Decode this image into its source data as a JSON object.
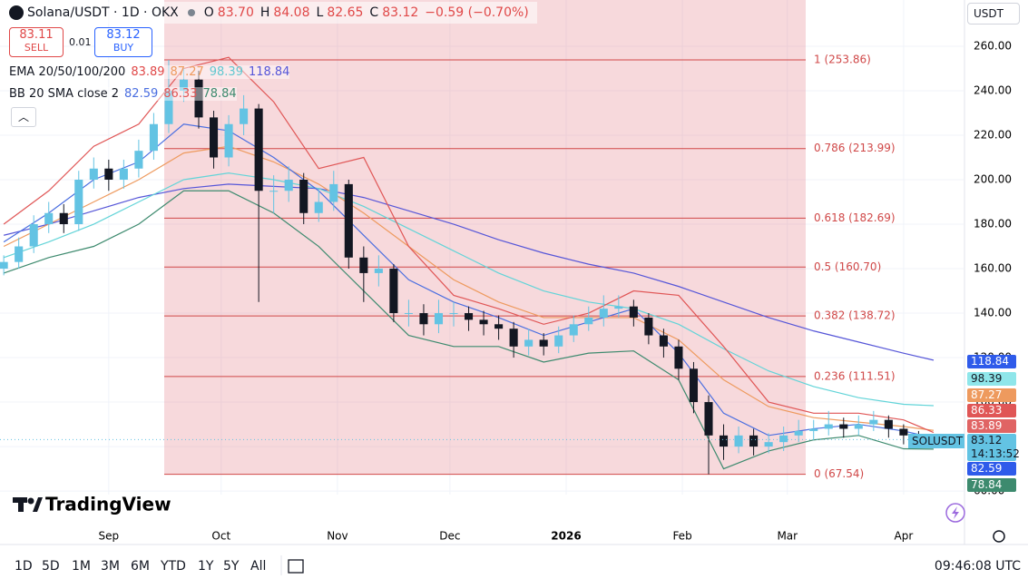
{
  "header": {
    "symbol": "Solana/USDT · 1D · OKX",
    "ohlc": [
      [
        "O",
        "83.70"
      ],
      [
        "H",
        "84.08"
      ],
      [
        "L",
        "82.65"
      ],
      [
        "C",
        "83.12"
      ]
    ],
    "change": "−0.59 (−0.70%)",
    "sell_price": "83.11",
    "sell": "SELL",
    "spread": "0.01",
    "buy_price": "83.12",
    "buy": "BUY",
    "ema": {
      "label": "EMA 20/50/100/200",
      "values": [
        "83.89",
        "87.27",
        "98.39",
        "118.84"
      ]
    },
    "bb": {
      "label": "BB 20 SMA close 2",
      "values": [
        "82.59",
        "86.33",
        "78.84"
      ]
    },
    "currency": "USDT",
    "ticker": "SOLUSDT",
    "countdown": "14:13:52",
    "brand": "TradingView",
    "timeframes": [
      "1D",
      "5D",
      "1M",
      "3M",
      "6M",
      "YTD",
      "1Y",
      "5Y",
      "All"
    ],
    "clock": "09:46:08 UTC"
  },
  "chart_data": {
    "type": "candlestick",
    "grid": true,
    "up_color": "#63c3e3",
    "down_color": "#131722",
    "xlim": [
      -29,
      228
    ],
    "ylim": [
      58.4,
      280.8
    ],
    "xticks": [
      {
        "value": 0,
        "label": "Sep"
      },
      {
        "value": 30,
        "label": "Oct"
      },
      {
        "value": 61,
        "label": "Nov"
      },
      {
        "value": 91,
        "label": "Dec"
      },
      {
        "value": 122,
        "label": "2026"
      },
      {
        "value": 153,
        "label": "Feb"
      },
      {
        "value": 181,
        "label": "Mar"
      },
      {
        "value": 212,
        "label": "Apr"
      }
    ],
    "yticks": [
      {
        "value": 60,
        "label": "60.00"
      },
      {
        "value": 80,
        "label": "80.00"
      },
      {
        "value": 100,
        "label": "100.00"
      },
      {
        "value": 120,
        "label": "120.00"
      },
      {
        "value": 140,
        "label": "140.00"
      },
      {
        "value": 160,
        "label": "160.00"
      },
      {
        "value": 180,
        "label": "180.00"
      },
      {
        "value": 200,
        "label": "200.00"
      },
      {
        "value": 220,
        "label": "220.00"
      },
      {
        "value": 240,
        "label": "240.00"
      },
      {
        "value": 260,
        "label": "260.00"
      }
    ],
    "x": [
      -28,
      -24,
      -20,
      -16,
      -12,
      -8,
      -4,
      0,
      4,
      8,
      12,
      16,
      20,
      24,
      28,
      32,
      36,
      40,
      44,
      48,
      52,
      56,
      60,
      64,
      68,
      72,
      76,
      80,
      84,
      88,
      92,
      96,
      100,
      104,
      108,
      112,
      116,
      120,
      124,
      128,
      132,
      136,
      140,
      144,
      148,
      152,
      156,
      160,
      164,
      168,
      172,
      176,
      180,
      184,
      188,
      192,
      196,
      200,
      204,
      208,
      212,
      216,
      220
    ],
    "open": [
      160,
      163,
      170,
      180,
      185,
      180,
      200,
      205,
      200,
      205,
      213,
      225,
      240,
      245,
      228,
      210,
      225,
      232,
      195,
      195,
      200,
      185,
      190,
      198,
      165,
      158,
      160,
      140,
      140,
      135,
      140,
      140,
      137,
      135,
      133,
      125,
      128,
      125,
      130,
      135,
      138,
      142,
      143,
      138,
      130,
      125,
      115,
      100,
      85,
      80,
      85,
      80,
      82,
      85,
      87,
      88,
      90,
      88,
      90,
      92,
      88,
      85,
      83.7
    ],
    "high": [
      166,
      174,
      184,
      190,
      189,
      204,
      210,
      209,
      209,
      218,
      230,
      253.86,
      250,
      249,
      231,
      229,
      238,
      234,
      202,
      206,
      203,
      196,
      204,
      200,
      170,
      166,
      162,
      146,
      144,
      146,
      145,
      143,
      141,
      139,
      136,
      133,
      131,
      134,
      139,
      143,
      148,
      148,
      146,
      140,
      133,
      128,
      118,
      103,
      90,
      89,
      88,
      86,
      89,
      92,
      92,
      96,
      93,
      94,
      96,
      94,
      90,
      87,
      84.08
    ],
    "low": [
      157,
      160,
      167,
      176,
      176,
      177,
      196,
      195,
      196,
      201,
      209,
      221,
      235,
      223,
      205,
      206,
      220,
      145,
      185,
      190,
      180,
      181,
      186,
      160,
      145,
      152,
      136,
      134,
      130,
      131,
      134,
      132,
      130,
      128,
      120,
      121,
      121,
      122,
      127,
      132,
      134,
      138,
      134,
      126,
      120,
      110,
      95,
      67.54,
      74,
      77,
      76,
      77,
      78,
      82,
      83,
      85,
      84,
      85,
      87,
      84,
      81,
      80,
      82.65
    ],
    "close": [
      163,
      170,
      180,
      185,
      180,
      200,
      205,
      200,
      205,
      213,
      225,
      240,
      245,
      228,
      210,
      225,
      232,
      195,
      195,
      200,
      185,
      190,
      198,
      165,
      158,
      160,
      140,
      140,
      135,
      140,
      140,
      137,
      135,
      133,
      125,
      128,
      125,
      130,
      135,
      138,
      142,
      143,
      138,
      130,
      125,
      115,
      100,
      85,
      80,
      85,
      80,
      82,
      85,
      87,
      88,
      90,
      88,
      90,
      92,
      88,
      85,
      82,
      83.12
    ],
    "lines": {
      "x": [
        -28,
        -16,
        -4,
        8,
        20,
        32,
        44,
        56,
        68,
        80,
        92,
        104,
        116,
        128,
        140,
        152,
        164,
        176,
        188,
        200,
        212,
        220
      ],
      "series": [
        {
          "color": "#5656d8",
          "values": [
            175,
            180,
            186,
            192,
            196,
            198,
            197,
            196,
            192,
            186,
            180,
            173,
            167,
            162,
            158,
            152,
            145,
            138,
            132,
            127,
            122,
            118.84
          ]
        },
        {
          "color": "#62d4d8",
          "values": [
            165,
            172,
            180,
            190,
            200,
            203,
            200,
            196,
            188,
            178,
            168,
            158,
            150,
            145,
            142,
            135,
            124,
            114,
            107,
            102,
            99,
            98.39
          ]
        },
        {
          "color": "#ee9a5e",
          "values": [
            170,
            180,
            190,
            200,
            212,
            215,
            208,
            198,
            185,
            170,
            155,
            145,
            138,
            138,
            138,
            128,
            110,
            98,
            93,
            91,
            89,
            87.27
          ]
        },
        {
          "color": "#4a6ee0",
          "values": [
            172,
            185,
            200,
            208,
            225,
            222,
            210,
            195,
            175,
            155,
            145,
            138,
            130,
            136,
            142,
            122,
            95,
            85,
            88,
            90,
            87,
            83.89
          ]
        },
        {
          "color": "#e05656",
          "values": [
            180,
            195,
            215,
            225,
            250,
            255,
            235,
            205,
            210,
            170,
            148,
            142,
            135,
            140,
            150,
            148,
            125,
            100,
            95,
            95,
            92,
            86.33
          ]
        },
        {
          "color": "#3d8a6e",
          "values": [
            158,
            165,
            170,
            180,
            195,
            195,
            185,
            170,
            150,
            130,
            125,
            125,
            118,
            122,
            123,
            110,
            70,
            78,
            83,
            85,
            79,
            78.84
          ]
        }
      ]
    },
    "fib": [
      {
        "value": 253.86,
        "label": "1 (253.86)"
      },
      {
        "value": 213.99,
        "label": "0.786 (213.99)"
      },
      {
        "value": 182.69,
        "label": "0.618 (182.69)"
      },
      {
        "value": 160.7,
        "label": "0.5 (160.70)"
      },
      {
        "value": 138.72,
        "label": "0.382 (138.72)"
      },
      {
        "value": 111.51,
        "label": "0.236 (111.51)"
      },
      {
        "value": 67.54,
        "label": "0 (67.54)"
      }
    ]
  }
}
